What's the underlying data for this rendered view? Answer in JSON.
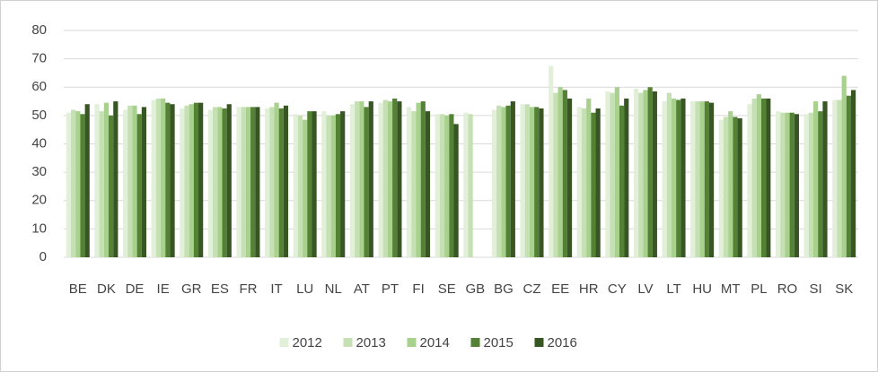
{
  "chart_data": {
    "type": "bar",
    "categories": [
      "BE",
      "DK",
      "DE",
      "IE",
      "GR",
      "ES",
      "FR",
      "IT",
      "LU",
      "NL",
      "AT",
      "PT",
      "FI",
      "SE",
      "GB",
      "BG",
      "CZ",
      "EE",
      "HR",
      "CY",
      "LV",
      "LT",
      "HU",
      "MT",
      "PL",
      "RO",
      "SI",
      "SK"
    ],
    "series": [
      {
        "name": "2012",
        "color": "#e2efd9",
        "values": [
          51,
          54,
          52,
          55.5,
          52.5,
          52,
          53,
          52.5,
          50.5,
          51.5,
          54,
          54.5,
          53,
          50.5,
          51,
          52,
          54,
          67.5,
          53,
          58.5,
          59.5,
          55,
          55,
          48.5,
          54,
          51.5,
          50.5,
          55.5
        ]
      },
      {
        "name": "2013",
        "color": "#c5e0b3",
        "values": [
          52,
          51.5,
          53.5,
          56,
          53.5,
          53,
          53,
          53,
          50,
          50,
          55,
          55.5,
          51.5,
          50.5,
          50.5,
          53.5,
          54,
          58,
          52.5,
          58,
          58,
          58,
          55,
          49.5,
          56,
          51,
          51,
          55.5
        ]
      },
      {
        "name": "2014",
        "color": "#a9d18e",
        "values": [
          51.5,
          54.5,
          53.5,
          56,
          54,
          53,
          53,
          54.5,
          48.5,
          50,
          55,
          55,
          54.5,
          50,
          null,
          53,
          53,
          60,
          56,
          60,
          59,
          56,
          55,
          51.5,
          57.5,
          51,
          55,
          64
        ]
      },
      {
        "name": "2015",
        "color": "#548235",
        "values": [
          50.5,
          50,
          50.5,
          54.5,
          54.5,
          52.5,
          53,
          52.5,
          51.5,
          50.5,
          53,
          56,
          55,
          50.5,
          null,
          53.5,
          53,
          59,
          51,
          53.5,
          60,
          55.5,
          55,
          49.5,
          56,
          51,
          51.5,
          57
        ]
      },
      {
        "name": "2016",
        "color": "#375623",
        "values": [
          54,
          55,
          53,
          54,
          54.5,
          54,
          53,
          53.5,
          51.5,
          51.5,
          55,
          55,
          51.5,
          47,
          null,
          55,
          52.5,
          56,
          52.5,
          56,
          58.5,
          56,
          54.5,
          49,
          56,
          50.5,
          55,
          59
        ]
      }
    ],
    "ylim": [
      0,
      80
    ],
    "yticks": [
      0,
      10,
      20,
      30,
      40,
      50,
      60,
      70,
      80
    ],
    "grid": true,
    "legend": "bottom"
  }
}
